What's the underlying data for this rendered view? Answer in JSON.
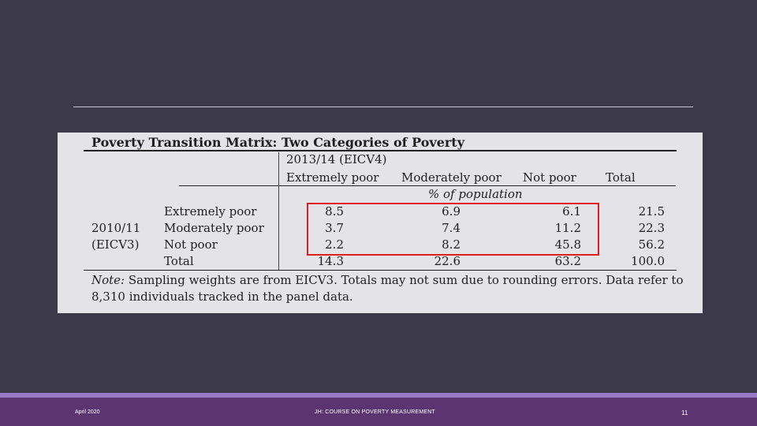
{
  "table": {
    "title": "Poverty Transition Matrix: Two Categories of Poverty",
    "col_group": "2013/14 (EICV4)",
    "col_headers": [
      "Extremely poor",
      "Moderately poor",
      "Not poor",
      "Total"
    ],
    "unit": "% of population",
    "row_group_line1": "2010/11",
    "row_group_line2": "(EICV3)",
    "rows": [
      {
        "label": "Extremely poor",
        "values": [
          "8.5",
          "6.9",
          "6.1",
          "21.5"
        ]
      },
      {
        "label": "Moderately poor",
        "values": [
          "3.7",
          "7.4",
          "11.2",
          "22.3"
        ]
      },
      {
        "label": "Not poor",
        "values": [
          "2.2",
          "8.2",
          "45.8",
          "56.2"
        ]
      },
      {
        "label": "Total",
        "values": [
          "14.3",
          "22.6",
          "63.2",
          "100.0"
        ]
      }
    ],
    "note_label": "Note:",
    "note_text": " Sampling weights are from EICV3. Totals may not sum due to rounding errors. Data refer to 8,310 individuals tracked in the panel data.",
    "highlight_color": "#e02020"
  },
  "footer": {
    "date": "April 2020",
    "course": "JH: COURSE ON POVERTY MEASUREMENT",
    "page": "11"
  }
}
